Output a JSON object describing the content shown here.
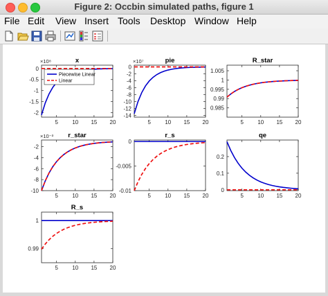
{
  "window": {
    "title": "Figure 2: Occbin simulated paths, figure 1"
  },
  "menu": [
    "File",
    "Edit",
    "View",
    "Insert",
    "Tools",
    "Desktop",
    "Window",
    "Help"
  ],
  "toolbar": [
    "new-figure-icon",
    "open-file-icon",
    "save-icon",
    "print-icon",
    "link-plot-icon",
    "insert-colorbar-icon",
    "insert-legend-icon"
  ],
  "colors": {
    "piecewise": "#0000cc",
    "linear": "#ee1111",
    "figure_bg": "#ffffff",
    "window_bg": "#d9d9d9"
  },
  "legend": {
    "entries": [
      "Piecewise Linear",
      "Linear"
    ],
    "placement": "inside top-right of first panel"
  },
  "chart_data": [
    {
      "type": "line",
      "title": "x",
      "multiplier": "×10⁸",
      "xlim": [
        1,
        20
      ],
      "ylim": [
        -2.2,
        0.15
      ],
      "xticks": [
        5,
        10,
        15,
        20
      ],
      "yticks": [
        0,
        -0.5,
        -1,
        -1.5,
        -2
      ],
      "yticklabels": [
        "0",
        "-0.5",
        "-1",
        "-1.5",
        "-2"
      ],
      "x": [
        1,
        20
      ],
      "series": [
        {
          "name": "Piecewise Linear",
          "start": -2.1,
          "end": 0,
          "rate": 0.3
        },
        {
          "name": "Linear",
          "start": 0,
          "end": 0,
          "rate": 0.3
        }
      ]
    },
    {
      "type": "line",
      "title": "pie",
      "multiplier": "×10⁷",
      "xlim": [
        1,
        20
      ],
      "ylim": [
        -14.5,
        0.5
      ],
      "xticks": [
        5,
        10,
        15,
        20
      ],
      "yticks": [
        0,
        -2,
        -4,
        -6,
        -8,
        -10,
        -12,
        -14
      ],
      "yticklabels": [
        "0",
        "-2",
        "-4",
        "-6",
        "-8",
        "-10",
        "-12",
        "-14"
      ],
      "x": [
        1,
        20
      ],
      "series": [
        {
          "name": "Piecewise Linear",
          "start": -13.5,
          "end": 0,
          "rate": 0.3
        },
        {
          "name": "Linear",
          "start": 0,
          "end": 0,
          "rate": 0.3
        }
      ]
    },
    {
      "type": "line",
      "title": "R_star",
      "multiplier": "",
      "xlim": [
        1,
        20
      ],
      "ylim": [
        0.98,
        1.008
      ],
      "xticks": [
        5,
        10,
        15,
        20
      ],
      "yticks": [
        1.005,
        1,
        0.995,
        0.99,
        0.985
      ],
      "yticklabels": [
        "1.005",
        "1",
        "0.995",
        "0.99",
        "0.985"
      ],
      "x": [
        1,
        20
      ],
      "series": [
        {
          "name": "Piecewise Linear",
          "start": 0.9908,
          "end": 1.0,
          "rate": 0.2
        },
        {
          "name": "Linear",
          "start": 0.9908,
          "end": 1.0,
          "rate": 0.2
        }
      ]
    },
    {
      "type": "line",
      "title": "r_star",
      "multiplier": "×10⁻³",
      "xlim": [
        1,
        20
      ],
      "ylim": [
        -10,
        -0.8
      ],
      "xticks": [
        5,
        10,
        15,
        20
      ],
      "yticks": [
        -2,
        -4,
        -6,
        -8,
        -10
      ],
      "yticklabels": [
        "-2",
        "-4",
        "-6",
        "-8",
        "-10"
      ],
      "x": [
        1,
        20
      ],
      "series": [
        {
          "name": "Piecewise Linear",
          "start": -10,
          "end": -1.0,
          "rate": 0.22
        },
        {
          "name": "Linear",
          "start": -10,
          "end": -1.0,
          "rate": 0.22
        }
      ]
    },
    {
      "type": "line",
      "title": "r_s",
      "multiplier": "",
      "xlim": [
        1,
        20
      ],
      "ylim": [
        -0.01,
        0.0003
      ],
      "xticks": [
        5,
        10,
        15,
        20
      ],
      "yticks": [
        0,
        -0.005,
        -0.01
      ],
      "yticklabels": [
        "0",
        "-0.005",
        "-0.01"
      ],
      "x": [
        1,
        20
      ],
      "series": [
        {
          "name": "Piecewise Linear",
          "start": 0,
          "end": 0,
          "rate": 0.2
        },
        {
          "name": "Linear",
          "start": -0.01,
          "end": 0,
          "rate": 0.2
        }
      ]
    },
    {
      "type": "line",
      "title": "qe",
      "multiplier": "",
      "xlim": [
        1,
        20
      ],
      "ylim": [
        -0.005,
        0.3
      ],
      "xticks": [
        5,
        10,
        15,
        20
      ],
      "yticks": [
        0.2,
        0.1,
        0
      ],
      "yticklabels": [
        "0.2",
        "0.1",
        "0"
      ],
      "x": [
        1,
        20
      ],
      "series": [
        {
          "name": "Piecewise Linear",
          "start": 0.29,
          "end": 0,
          "rate": 0.2
        },
        {
          "name": "Linear",
          "start": 0,
          "end": 0,
          "rate": 0.2
        }
      ]
    },
    {
      "type": "line",
      "title": "R_s",
      "multiplier": "",
      "xlim": [
        1,
        20
      ],
      "ylim": [
        0.985,
        1.003
      ],
      "xticks": [
        5,
        10,
        15,
        20
      ],
      "yticks": [
        1,
        0.99
      ],
      "yticklabels": [
        "1",
        "0.99"
      ],
      "x": [
        1,
        20
      ],
      "series": [
        {
          "name": "Piecewise Linear",
          "start": 1.0,
          "end": 1.0,
          "rate": 0.2
        },
        {
          "name": "Linear",
          "start": 0.9898,
          "end": 1.0,
          "rate": 0.2
        }
      ]
    }
  ]
}
